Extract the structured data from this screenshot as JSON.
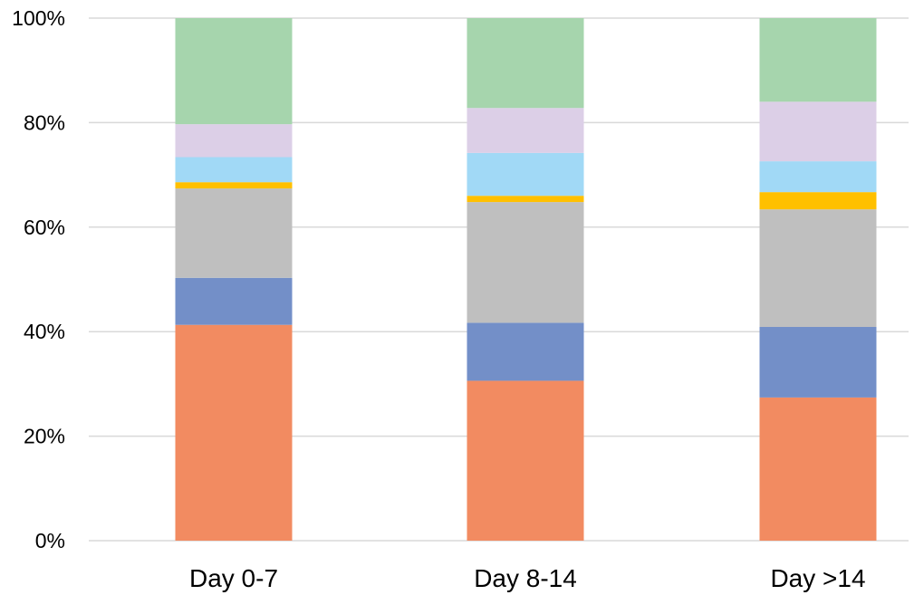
{
  "chart_data": {
    "type": "bar",
    "stacked": true,
    "percent_stacked": true,
    "categories": [
      "Day 0-7",
      "Day 8-14",
      "Day >14"
    ],
    "series": [
      {
        "color": "#f28b61",
        "values": [
          41.3,
          30.6,
          27.4
        ]
      },
      {
        "color": "#738fc8",
        "values": [
          9.0,
          11.1,
          13.5
        ]
      },
      {
        "color": "#bfbfbf",
        "values": [
          17.1,
          23.1,
          22.5
        ]
      },
      {
        "color": "#ffc000",
        "values": [
          1.2,
          1.2,
          3.3
        ]
      },
      {
        "color": "#a1d9f6",
        "values": [
          4.8,
          8.2,
          5.9
        ]
      },
      {
        "color": "#dccfe7",
        "values": [
          6.3,
          8.6,
          11.4
        ]
      },
      {
        "color": "#a6d5ad",
        "values": [
          20.3,
          17.2,
          16.0
        ]
      }
    ],
    "yticks": [
      "0%",
      "20%",
      "40%",
      "60%",
      "80%",
      "100%"
    ],
    "ylim": [
      0,
      100
    ],
    "grid": true,
    "title": "",
    "xlabel": "",
    "ylabel": ""
  }
}
